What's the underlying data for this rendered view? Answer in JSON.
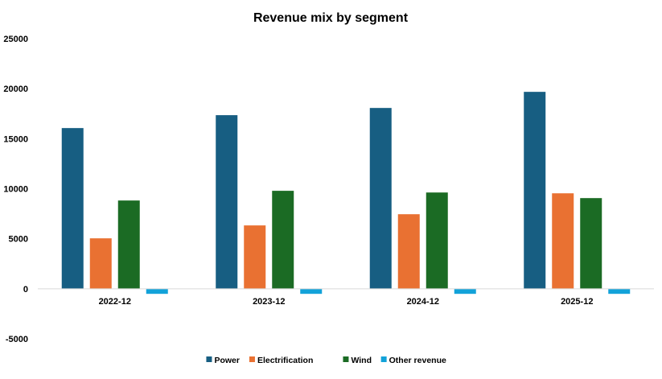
{
  "chart_data": {
    "type": "bar",
    "title": "Revenue mix by segment",
    "xlabel": "",
    "ylabel": "",
    "categories": [
      "2022-12",
      "2023-12",
      "2024-12",
      "2025-12"
    ],
    "series": [
      {
        "name": "Power",
        "color": "#175e82",
        "values": [
          16060,
          17350,
          18070,
          19680
        ]
      },
      {
        "name": "Electrification",
        "color": "#e97132",
        "values": [
          5040,
          6330,
          7450,
          9540
        ]
      },
      {
        "name": "Wind",
        "color": "#1b6b24",
        "values": [
          8820,
          9790,
          9620,
          9060
        ]
      },
      {
        "name": "Other revenue",
        "color": "#12a2d9",
        "values": [
          -510,
          -510,
          -510,
          -510
        ]
      }
    ],
    "ylim": [
      -5000,
      25000
    ],
    "yticks": [
      "25000",
      "20000",
      "15000",
      "10000",
      "5000",
      "0",
      "-5000"
    ],
    "grid": false,
    "legend": "bottom"
  }
}
